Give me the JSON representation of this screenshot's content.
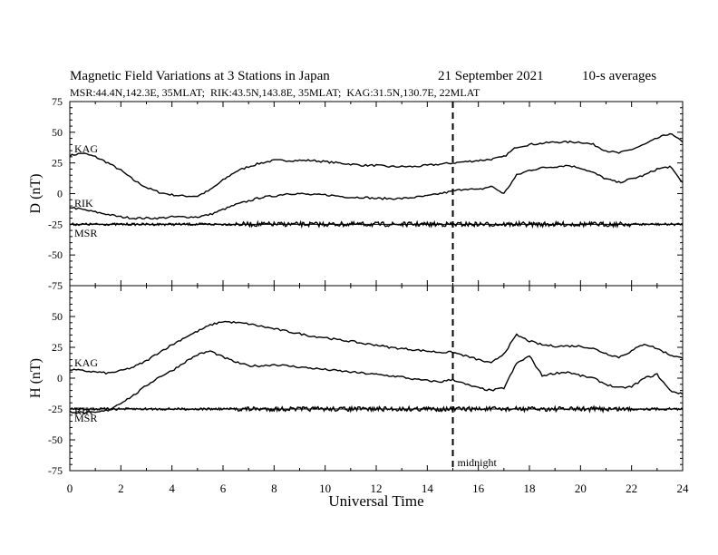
{
  "header": {
    "title": "Magnetic Field Variations at 3 Stations in Japan",
    "date": "21 September 2021",
    "averaging": "10-s averages",
    "stations_line": "MSR:44.4N,142.3E, 35MLAT;  RIK:43.5N,143.8E, 35MLAT;  KAG:31.5N,130.7E, 22MLAT"
  },
  "chart_data": [
    {
      "type": "line",
      "panel": "D",
      "ylabel": "D (nT)",
      "ylim": [
        -75,
        75
      ],
      "yticks": [
        75,
        50,
        25,
        0,
        -25,
        -50,
        -75
      ],
      "xlim": [
        0,
        24
      ],
      "series": [
        {
          "name": "KAG",
          "x": [
            0,
            0.5,
            1,
            1.5,
            2,
            2.5,
            3,
            3.5,
            4,
            4.5,
            5,
            5.5,
            6,
            6.5,
            7,
            7.5,
            8,
            8.5,
            9,
            9.5,
            10,
            10.5,
            11,
            11.5,
            12,
            12.5,
            13,
            13.5,
            14,
            14.5,
            15,
            15.5,
            16,
            16.5,
            17,
            17.5,
            18,
            18.5,
            19,
            19.5,
            20,
            20.5,
            21,
            21.5,
            22,
            22.5,
            23,
            23.5,
            24
          ],
          "values": [
            31,
            33,
            30,
            25,
            19,
            11,
            5,
            1,
            -1,
            -2,
            -2,
            3,
            11,
            18,
            22,
            25,
            27,
            27,
            27,
            27,
            26,
            25,
            24,
            23,
            23,
            22,
            22,
            22,
            23,
            24,
            25,
            26,
            27,
            28,
            30,
            38,
            40,
            41,
            42,
            42,
            42,
            40,
            35,
            33,
            36,
            40,
            45,
            49,
            42
          ]
        },
        {
          "name": "RIK",
          "x": [
            0,
            0.5,
            1,
            1.5,
            2,
            2.5,
            3,
            3.5,
            4,
            4.5,
            5,
            5.5,
            6,
            6.5,
            7,
            7.5,
            8,
            8.5,
            9,
            9.5,
            10,
            10.5,
            11,
            11.5,
            12,
            12.5,
            13,
            13.5,
            14,
            14.5,
            15,
            15.5,
            16,
            16.5,
            17,
            17.5,
            18,
            18.5,
            19,
            19.5,
            20,
            20.5,
            21,
            21.5,
            22,
            22.5,
            23,
            23.5,
            24
          ],
          "values": [
            -11,
            -13,
            -15,
            -17,
            -19,
            -20,
            -20,
            -20,
            -19,
            -19,
            -19,
            -17,
            -13,
            -9,
            -6,
            -3,
            -2,
            0,
            0,
            -1,
            -1,
            -2,
            -3,
            -3,
            -4,
            -4,
            -4,
            -3,
            -2,
            0,
            2,
            4,
            3,
            6,
            0,
            15,
            19,
            21,
            22,
            23,
            21,
            17,
            12,
            9,
            12,
            15,
            20,
            22,
            9
          ]
        },
        {
          "name": "MSR",
          "x": [
            0,
            1,
            2,
            3,
            4,
            5,
            6,
            7,
            8,
            9,
            10,
            11,
            12,
            13,
            14,
            15,
            16,
            17,
            18,
            19,
            20,
            21,
            22,
            23,
            24
          ],
          "values": [
            -25,
            -25,
            -25,
            -25,
            -25,
            -25,
            -25,
            -25,
            -25,
            -25,
            -25,
            -25,
            -25,
            -25,
            -25,
            -25,
            -25,
            -25,
            -25,
            -25,
            -25,
            -25,
            -25,
            -25,
            -25
          ]
        }
      ]
    },
    {
      "type": "line",
      "panel": "H",
      "ylabel": "H (nT)",
      "ylim": [
        -75,
        75
      ],
      "yticks": [
        50,
        25,
        0,
        -25,
        -50,
        -75
      ],
      "xlim": [
        0,
        24
      ],
      "xlabel": "Universal Time",
      "xticks": [
        0,
        2,
        4,
        6,
        8,
        10,
        12,
        14,
        16,
        18,
        20,
        22,
        24
      ],
      "series": [
        {
          "name": "KAG",
          "x": [
            0,
            0.5,
            1,
            1.5,
            2,
            2.5,
            3,
            3.5,
            4,
            4.5,
            5,
            5.5,
            6,
            6.5,
            7,
            7.5,
            8,
            8.5,
            9,
            9.5,
            10,
            10.5,
            11,
            11.5,
            12,
            12.5,
            13,
            13.5,
            14,
            14.5,
            15,
            15.5,
            16,
            16.5,
            17,
            17.5,
            18,
            18.5,
            19,
            19.5,
            20,
            20.5,
            21,
            21.5,
            22,
            22.5,
            23,
            23.5,
            24
          ],
          "values": [
            7,
            6,
            5,
            4,
            6,
            9,
            14,
            21,
            27,
            33,
            38,
            43,
            46,
            45,
            44,
            42,
            40,
            38,
            36,
            34,
            33,
            31,
            30,
            28,
            27,
            25,
            24,
            23,
            22,
            21,
            21,
            18,
            15,
            12,
            20,
            35,
            30,
            27,
            26,
            26,
            26,
            24,
            20,
            17,
            22,
            28,
            24,
            19,
            16
          ]
        },
        {
          "name": "RIK",
          "x": [
            0,
            0.5,
            1,
            1.5,
            2,
            2.5,
            3,
            3.5,
            4,
            4.5,
            5,
            5.5,
            6,
            6.5,
            7,
            7.5,
            8,
            8.5,
            9,
            9.5,
            10,
            10.5,
            11,
            11.5,
            12,
            12.5,
            13,
            13.5,
            14,
            14.5,
            15,
            15.5,
            16,
            16.5,
            17,
            17.5,
            18,
            18.5,
            19,
            19.5,
            20,
            20.5,
            21,
            21.5,
            22,
            22.5,
            23,
            23.5,
            24
          ],
          "values": [
            -27,
            -28,
            -28,
            -26,
            -20,
            -14,
            -6,
            1,
            6,
            13,
            19,
            22,
            17,
            13,
            10,
            10,
            11,
            10,
            9,
            8,
            7,
            6,
            5,
            4,
            3,
            2,
            1,
            -1,
            -2,
            -3,
            -1,
            -5,
            -8,
            -10,
            -8,
            12,
            18,
            2,
            4,
            5,
            2,
            0,
            -5,
            -8,
            -7,
            0,
            3,
            -10,
            -13
          ]
        },
        {
          "name": "MSR",
          "x": [
            0,
            1,
            2,
            3,
            4,
            5,
            6,
            7,
            8,
            9,
            10,
            11,
            12,
            13,
            14,
            15,
            16,
            17,
            18,
            19,
            20,
            21,
            22,
            23,
            24
          ],
          "values": [
            -25,
            -25,
            -25,
            -25,
            -25,
            -25,
            -25,
            -25,
            -25,
            -25,
            -25,
            -25,
            -25,
            -25,
            -25,
            -25,
            -25,
            -25,
            -25,
            -25,
            -25,
            -25,
            -25,
            -25,
            -25
          ]
        }
      ]
    }
  ],
  "annotations": {
    "midnight_ut": 15,
    "midnight_label": "midnight"
  },
  "panel_labels": {
    "D": {
      "KAG": "KAG",
      "RIK": "RIK",
      "MSR": "MSR"
    },
    "H": {
      "KAG": "KAG",
      "RIK": "RIK",
      "MSR": "MSR"
    }
  }
}
